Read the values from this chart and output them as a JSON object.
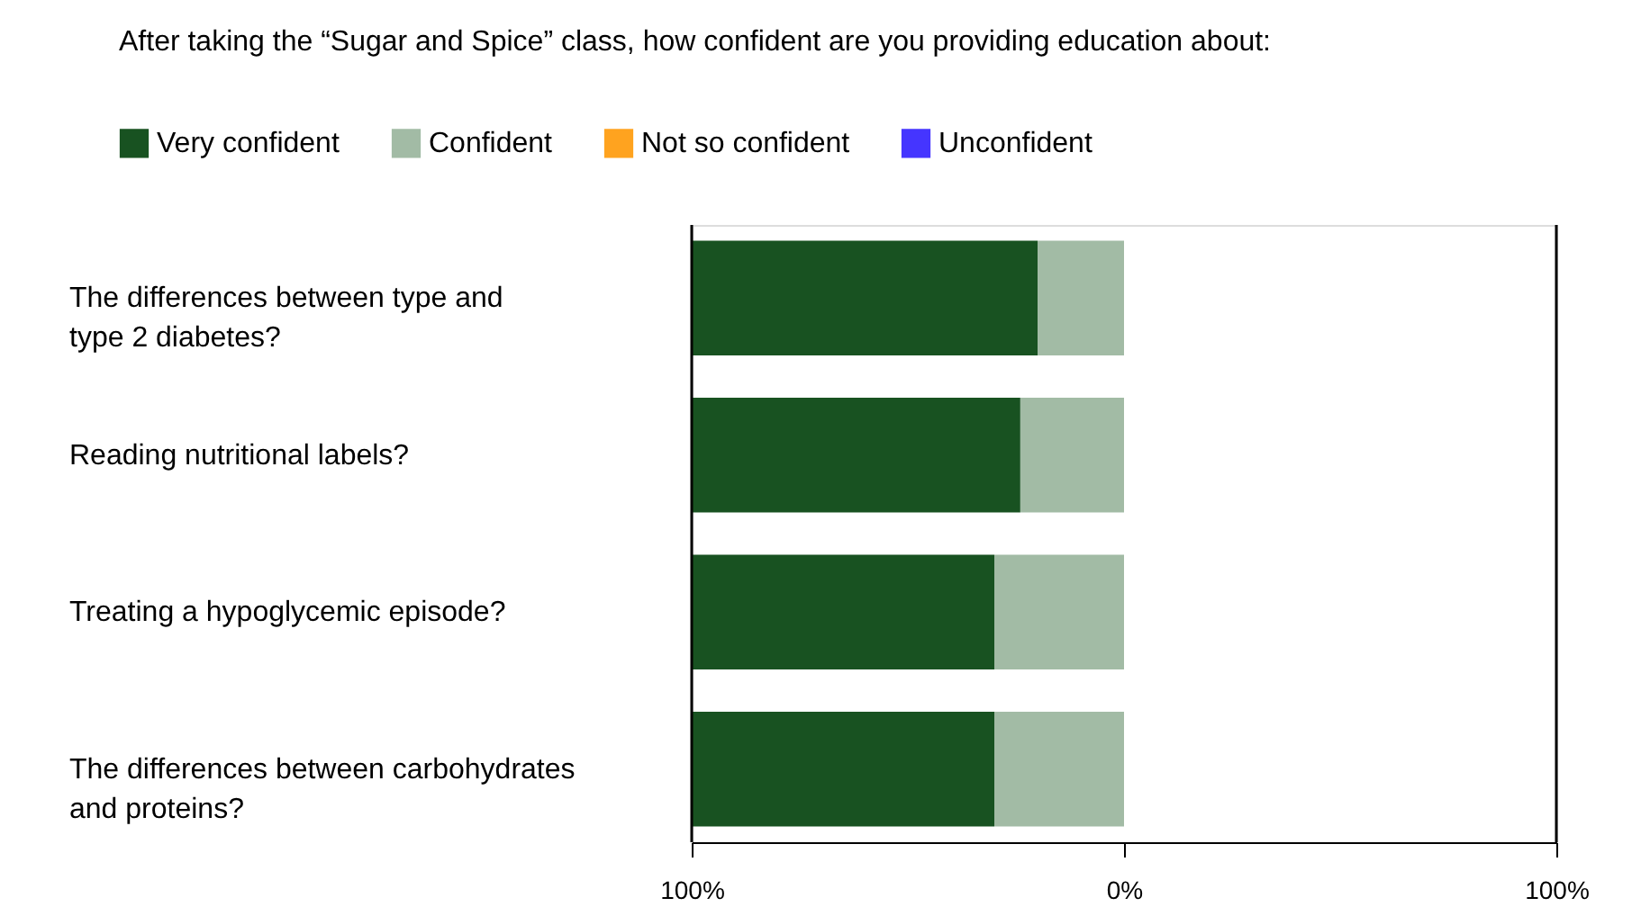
{
  "chart_data": {
    "type": "bar",
    "title": "After taking the “Sugar and Spice” class, how confident are you providing education about:",
    "orientation": "horizontal",
    "stacked": true,
    "categories": [
      "The differences between type and\ntype 2 diabetes?",
      "Reading nutritional labels?",
      "Treating a hypoglycemic episode?",
      "The differences between carbohydrates\nand proteins?"
    ],
    "series": [
      {
        "name": "Confident",
        "color": "#a2bba5",
        "values": [
          -20,
          -24,
          -30,
          -30
        ]
      },
      {
        "name": "Very confident",
        "color": "#185221",
        "values": [
          -80,
          -76,
          -70,
          -70
        ]
      },
      {
        "name": "Not so confident",
        "color": "#ffa31f",
        "values": [
          0,
          0,
          0,
          0
        ]
      },
      {
        "name": "Unconfident",
        "color": "#4535ff",
        "values": [
          0,
          0,
          0,
          0
        ]
      }
    ],
    "xlim": [
      -100,
      100
    ],
    "xticks": [
      {
        "value": -100,
        "label": "100%"
      },
      {
        "value": 0,
        "label": "0%"
      },
      {
        "value": 100,
        "label": "100%"
      }
    ],
    "grid": false,
    "legend": "top"
  }
}
